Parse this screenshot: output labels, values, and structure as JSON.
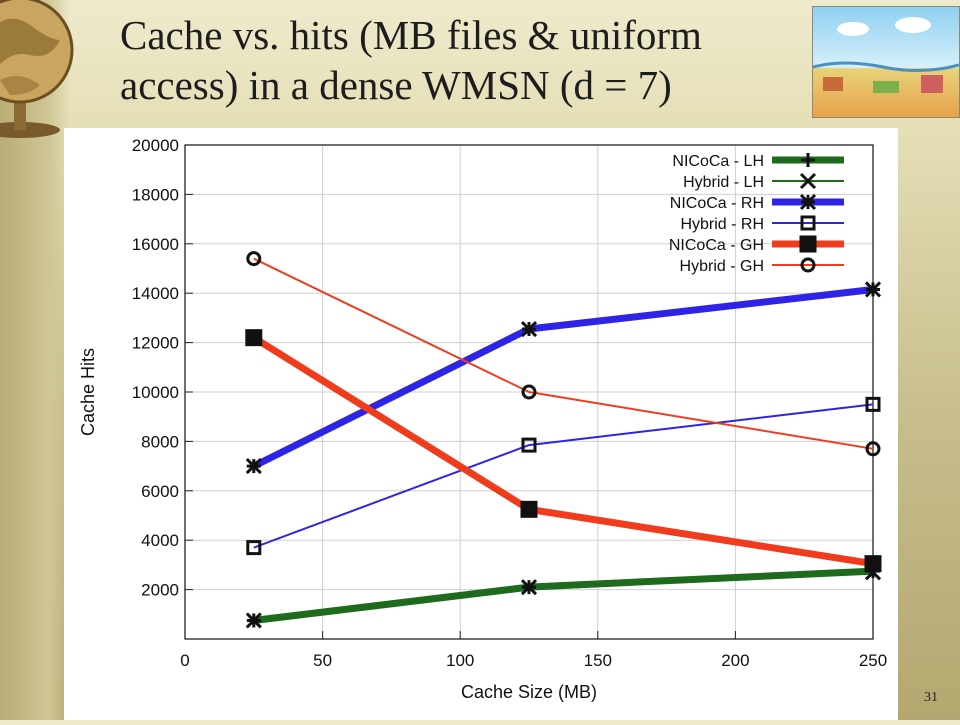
{
  "slide": {
    "title_line1": "Cache vs. hits (MB files & uniform",
    "title_line2": "access) in a dense WMSN (d = 7)",
    "page_number": "31"
  },
  "chart_data": {
    "type": "line",
    "xlabel": "Cache Size (MB)",
    "ylabel": "Cache Hits",
    "xlim": [
      0,
      250
    ],
    "ylim": [
      0,
      20000
    ],
    "xticks": [
      0,
      50,
      100,
      150,
      200,
      250
    ],
    "yticks": [
      2000,
      4000,
      6000,
      8000,
      10000,
      12000,
      14000,
      16000,
      18000,
      20000
    ],
    "grid": true,
    "legend_position": "top-right",
    "x": [
      25,
      125,
      250
    ],
    "series": [
      {
        "name": "NICoCa - LH",
        "values": [
          750,
          2100,
          2750
        ],
        "color": "#1e6b1e",
        "marker": "plus",
        "thick": true
      },
      {
        "name": "Hybrid - LH",
        "values": [
          750,
          2100,
          2700
        ],
        "color": "#1e6b1e",
        "marker": "cross",
        "thick": false
      },
      {
        "name": "NICoCa - RH",
        "values": [
          7000,
          12550,
          14150
        ],
        "color": "#2f24e6",
        "marker": "star",
        "thick": true
      },
      {
        "name": "Hybrid - RH",
        "values": [
          3700,
          7850,
          9500
        ],
        "color": "#2f24e6",
        "marker": "square-open",
        "thick": false
      },
      {
        "name": "NICoCa - GH",
        "values": [
          12200,
          5250,
          3050
        ],
        "color": "#f03c1c",
        "marker": "square-filled",
        "thick": true
      },
      {
        "name": "Hybrid - GH",
        "values": [
          15400,
          10000,
          7700
        ],
        "color": "#f03c1c",
        "marker": "circle-open",
        "thick": false
      }
    ]
  }
}
